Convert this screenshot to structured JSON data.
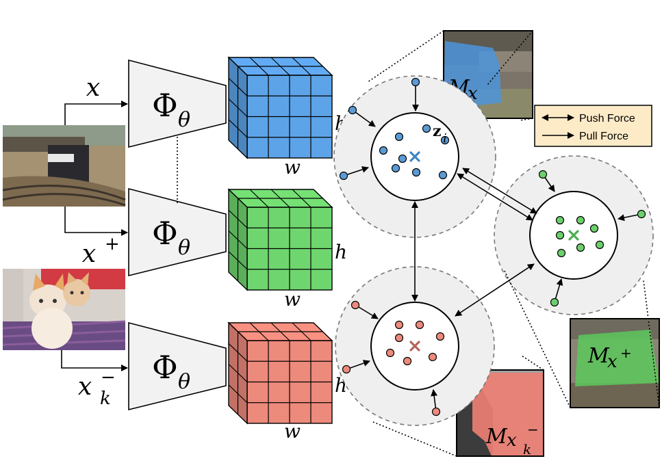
{
  "inputs": {
    "anchor_label": "x",
    "positive_label": "x",
    "positive_sup": "+",
    "negative_label": "x",
    "negative_sub": "k",
    "negative_sup": "−"
  },
  "encoder": {
    "symbol": "Φ",
    "subscript": "θ"
  },
  "feature_maps": {
    "height_label": "h",
    "width_label": "w"
  },
  "clusters": {
    "anchor_point_label": "z",
    "anchor_point_sub": "i",
    "colors": {
      "anchor": "#5b9bd5",
      "positive": "#6ccf6c",
      "negative": "#ec8a7c",
      "anchor_center": "#3d85c6",
      "positive_center": "#4caf50",
      "negative_center": "#b5645a"
    }
  },
  "masks": {
    "anchor_label": "M",
    "anchor_sub": "x",
    "positive_label": "M",
    "positive_sub": "x",
    "positive_sup": "+",
    "negative_label": "M",
    "negative_sub": "x",
    "negative_sub2": "k",
    "negative_sup": "−"
  },
  "legend": {
    "push_label": "Push Force",
    "pull_label": "Pull Force",
    "background": "#fdebc8"
  }
}
